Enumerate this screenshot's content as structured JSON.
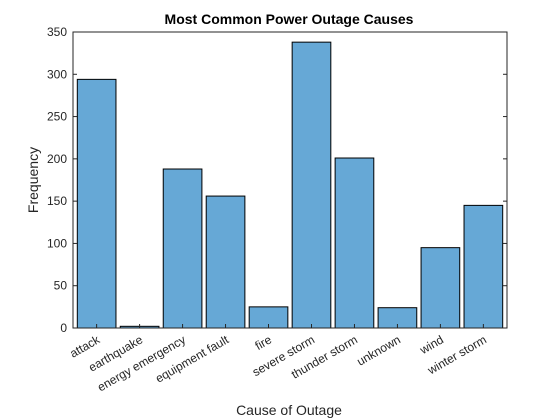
{
  "chart_data": {
    "type": "bar",
    "title": "Most Common Power Outage Causes",
    "xlabel": "Cause of Outage",
    "ylabel": "Frequency",
    "categories": [
      "attack",
      "earthquake",
      "energy emergency",
      "equipment fault",
      "fire",
      "severe storm",
      "thunder storm",
      "unknown",
      "wind",
      "winter storm"
    ],
    "values": [
      294,
      2,
      188,
      156,
      25,
      338,
      201,
      24,
      95,
      145
    ],
    "ylim": [
      0,
      350
    ],
    "yticks": [
      0,
      50,
      100,
      150,
      200,
      250,
      300,
      350
    ],
    "bar_color": "#66a8d6",
    "edge_color": "#000000",
    "grid": false,
    "legend": "none"
  }
}
